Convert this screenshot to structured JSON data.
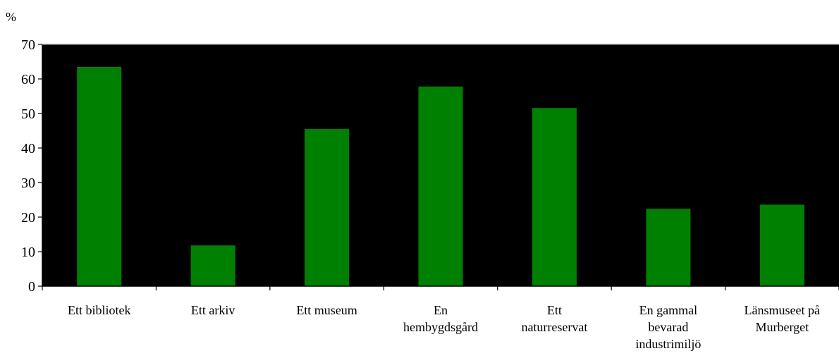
{
  "chart_data": {
    "type": "bar",
    "ylabel": "%",
    "xlabel": "",
    "ylim": [
      0,
      70
    ],
    "yticks": [
      0,
      10,
      20,
      30,
      40,
      50,
      60,
      70
    ],
    "categories": [
      [
        "Ett bibliotek"
      ],
      [
        "Ett arkiv"
      ],
      [
        "Ett museum"
      ],
      [
        "En",
        "hembygdsgård"
      ],
      [
        "Ett",
        "naturreservat"
      ],
      [
        "En gammal",
        "bevarad",
        "industrimiljö"
      ],
      [
        "Länsmuseet på",
        "Murberget"
      ]
    ],
    "values": [
      63.5,
      11.8,
      45.5,
      57.8,
      51.6,
      22.4,
      23.6
    ],
    "bar_color": "#008000",
    "plot_background": "#000000",
    "grid": false,
    "legend": "none"
  }
}
